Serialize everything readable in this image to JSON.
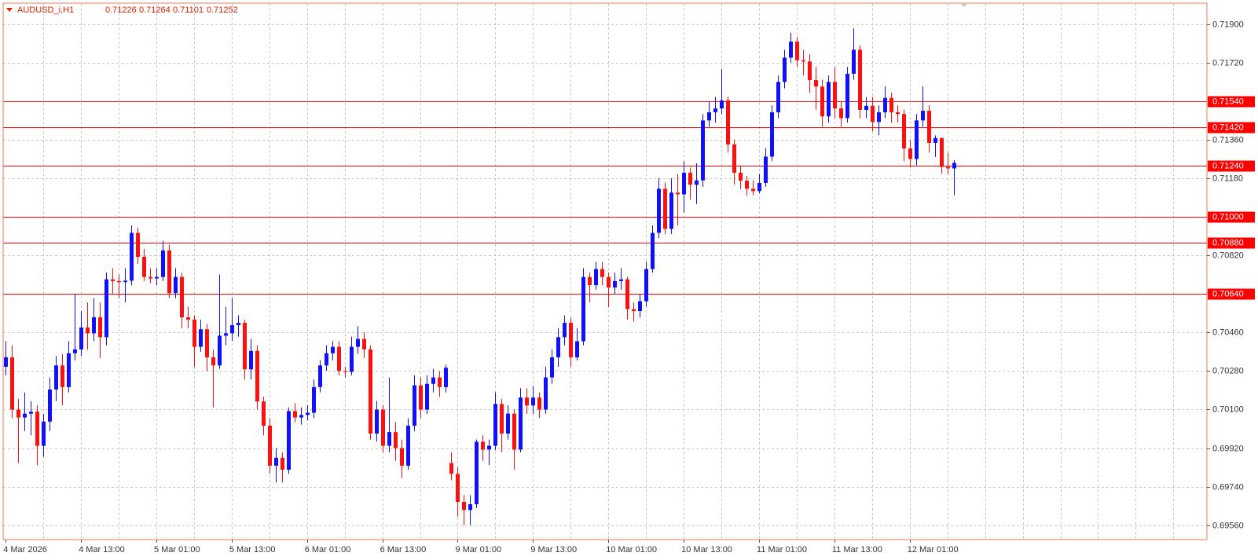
{
  "chart_data": {
    "type": "candlestick",
    "title": "AUDUSD_i,H1",
    "up_color": "#1010ff",
    "down_color": "#ff1010",
    "level_color": "#ff0000",
    "grid": true,
    "categories": [
      "4 Mar 2026",
      null,
      null,
      null,
      null,
      null,
      null,
      null,
      null,
      null,
      null,
      null,
      "4 Mar 13:00",
      null,
      null,
      null,
      null,
      null,
      null,
      null,
      null,
      null,
      null,
      null,
      "5 Mar 01:00",
      null,
      null,
      null,
      null,
      null,
      null,
      null,
      null,
      null,
      null,
      null,
      "5 Mar 13:00",
      null,
      null,
      null,
      null,
      null,
      null,
      null,
      null,
      null,
      null,
      null,
      "6 Mar 01:00",
      null,
      null,
      null,
      null,
      null,
      null,
      null,
      null,
      null,
      null,
      null,
      "6 Mar 13:00",
      null,
      null,
      null,
      null,
      null,
      null,
      null,
      null,
      null,
      null,
      null,
      "9 Mar 01:00",
      null,
      null,
      null,
      null,
      null,
      null,
      null,
      null,
      null,
      null,
      null,
      "9 Mar 13:00",
      null,
      null,
      null,
      null,
      null,
      null,
      null,
      null,
      null,
      null,
      null,
      "10 Mar 01:00",
      null,
      null,
      null,
      null,
      null,
      null,
      null,
      null,
      null,
      null,
      null,
      "10 Mar 13:00",
      null,
      null,
      null,
      null,
      null,
      null,
      null,
      null,
      null,
      null,
      null,
      "11 Mar 01:00",
      null,
      null,
      null,
      null,
      null,
      null,
      null,
      null,
      null,
      null,
      null,
      "11 Mar 13:00",
      null,
      null,
      null,
      null,
      null,
      null,
      null,
      null,
      null,
      null,
      null,
      "12 Mar 01:00",
      null,
      null,
      null,
      null,
      null,
      null,
      null
    ],
    "open": [
      0.703,
      0.70344,
      0.701,
      0.70063,
      0.70081,
      0.7009,
      0.69931,
      0.70044,
      0.70194,
      0.70306,
      0.70205,
      0.70363,
      0.70381,
      0.70483,
      0.70456,
      0.70531,
      0.70438,
      0.70708,
      0.707,
      0.70695,
      0.70702,
      0.70925,
      0.70813,
      0.70719,
      0.70712,
      0.70719,
      0.70843,
      0.70644,
      0.70719,
      0.70531,
      0.7052,
      0.70393,
      0.70475,
      0.70344,
      0.70306,
      0.70445,
      0.70456,
      0.70494,
      0.70505,
      0.70288,
      0.70374,
      0.70138,
      0.70025,
      0.69838,
      0.69875,
      0.69819,
      0.70093,
      0.70063,
      0.70075,
      0.70085,
      0.70205,
      0.70306,
      0.70363,
      0.70393,
      0.7028,
      0.70276,
      0.70393,
      0.7043,
      0.70381,
      0.69988,
      0.701,
      0.69931,
      0.69995,
      0.6992,
      0.69838,
      0.70025,
      0.70213,
      0.701,
      0.7022,
      0.7025,
      0.70205,
      0.6985,
      0.698,
      0.69669,
      0.69631,
      0.69658,
      0.6995,
      0.69913,
      0.69931,
      0.70126,
      0.69988,
      0.70081,
      0.69913,
      0.70156,
      0.70119,
      0.70156,
      0.701,
      0.7025,
      0.70344,
      0.70438,
      0.70505,
      0.70344,
      0.70419,
      0.70719,
      0.70681,
      0.70756,
      0.70719,
      0.7067,
      0.707,
      0.70708,
      0.70569,
      0.7056,
      0.70606,
      0.70756,
      0.70925,
      0.71131,
      0.70944,
      0.71113,
      0.71105,
      0.71206,
      0.7115,
      0.7117,
      0.7145,
      0.71488,
      0.71506,
      0.71544,
      0.71338,
      0.71206,
      0.71169,
      0.71131,
      0.7112,
      0.71158,
      0.71281,
      0.71488,
      0.7163,
      0.71743,
      0.71818,
      0.71731,
      0.71725,
      0.71638,
      0.71608,
      0.71469,
      0.7163,
      0.71506,
      0.71461,
      0.71668,
      0.7178,
      0.71499,
      0.71518,
      0.71443,
      0.71488,
      0.71555,
      0.71488,
      0.7148,
      0.71319,
      0.7127,
      0.7145,
      0.71495,
      0.71345,
      0.71368,
      0.71233,
      0.71226
    ],
    "high": [
      0.7042,
      0.704,
      0.7015,
      0.7018,
      0.7014,
      0.7012,
      0.7008,
      0.7025,
      0.7035,
      0.7036,
      0.7042,
      0.7064,
      0.7056,
      0.706,
      0.7062,
      0.706,
      0.7074,
      0.7076,
      0.7073,
      0.7076,
      0.7096,
      0.7095,
      0.7085,
      0.7076,
      0.7076,
      0.70888,
      0.7087,
      0.7076,
      0.7074,
      0.7058,
      0.7054,
      0.7052,
      0.705,
      0.7038,
      0.7073,
      0.7058,
      0.7062,
      0.7054,
      0.7052,
      0.7043,
      0.704,
      0.7016,
      0.7006,
      0.6992,
      0.699,
      0.7011,
      0.7013,
      0.7011,
      0.7012,
      0.7024,
      0.7033,
      0.704,
      0.7042,
      0.7042,
      0.703,
      0.7044,
      0.7049,
      0.7046,
      0.704,
      0.7014,
      0.7012,
      0.7025,
      0.7004,
      0.6996,
      0.7006,
      0.7026,
      0.7025,
      0.7026,
      0.7029,
      0.7028,
      0.7031,
      0.699,
      0.6983,
      0.697,
      0.697,
      0.6996,
      0.6998,
      0.6996,
      0.7018,
      0.7015,
      0.7012,
      0.701,
      0.702,
      0.702,
      0.7021,
      0.7018,
      0.703,
      0.7038,
      0.7048,
      0.7054,
      0.7053,
      0.7048,
      0.7076,
      0.7074,
      0.7079,
      0.7079,
      0.7074,
      0.7074,
      0.7076,
      0.7072,
      0.706,
      0.7064,
      0.7079,
      0.7096,
      0.7118,
      0.7116,
      0.7118,
      0.712,
      0.7126,
      0.7123,
      0.7125,
      0.7148,
      0.7154,
      0.7156,
      0.7169,
      0.7156,
      0.7136,
      0.7124,
      0.7119,
      0.7117,
      0.712,
      0.7132,
      0.7152,
      0.7166,
      0.7178,
      0.7186,
      0.7184,
      0.7178,
      0.7176,
      0.717,
      0.7164,
      0.7166,
      0.717,
      0.7154,
      0.717,
      0.7188,
      0.718,
      0.7156,
      0.7156,
      0.7152,
      0.7161,
      0.7158,
      0.7152,
      0.715,
      0.7136,
      0.7148,
      0.7161,
      0.7152,
      0.7138,
      0.7137,
      0.713,
      0.71264
    ],
    "low": [
      0.7026,
      0.7006,
      0.6985,
      0.7,
      0.6998,
      0.6984,
      0.6988,
      0.7,
      0.7014,
      0.7012,
      0.7018,
      0.7033,
      0.7035,
      0.7038,
      0.7042,
      0.7034,
      0.704,
      0.7064,
      0.7062,
      0.706,
      0.7068,
      0.7078,
      0.707,
      0.7069,
      0.7068,
      0.707,
      0.7062,
      0.7062,
      0.7048,
      0.7048,
      0.703,
      0.7037,
      0.7028,
      0.7011,
      0.7029,
      0.704,
      0.7042,
      0.7044,
      0.7024,
      0.7024,
      0.701,
      0.6998,
      0.698,
      0.6976,
      0.6976,
      0.698,
      0.7004,
      0.7003,
      0.7005,
      0.7006,
      0.7018,
      0.7028,
      0.7033,
      0.7026,
      0.7025,
      0.7026,
      0.7036,
      0.7034,
      0.6996,
      0.6995,
      0.699,
      0.699,
      0.6986,
      0.6978,
      0.6982,
      0.7,
      0.7006,
      0.7008,
      0.7018,
      0.7016,
      0.7018,
      0.6977,
      0.696,
      0.6956,
      0.6956,
      0.6964,
      0.6986,
      0.6984,
      0.6991,
      0.699,
      0.6996,
      0.6982,
      0.699,
      0.7008,
      0.7008,
      0.7006,
      0.7008,
      0.7022,
      0.703,
      0.704,
      0.703,
      0.7033,
      0.704,
      0.706,
      0.7066,
      0.7068,
      0.7058,
      0.7064,
      0.7066,
      0.7052,
      0.7051,
      0.7053,
      0.7058,
      0.7074,
      0.709,
      0.7092,
      0.7092,
      0.7096,
      0.7102,
      0.7108,
      0.7106,
      0.7114,
      0.7142,
      0.7144,
      0.7148,
      0.713,
      0.7115,
      0.7113,
      0.711,
      0.711,
      0.7111,
      0.7114,
      0.7126,
      0.7146,
      0.716,
      0.7172,
      0.717,
      0.7166,
      0.7158,
      0.715,
      0.7142,
      0.7144,
      0.7146,
      0.7142,
      0.7144,
      0.7164,
      0.7146,
      0.7146,
      0.714,
      0.7138,
      0.7146,
      0.7144,
      0.7144,
      0.7126,
      0.7123,
      0.7124,
      0.7142,
      0.713,
      0.7128,
      0.712,
      0.712,
      0.71101
    ],
    "close": [
      0.70344,
      0.701,
      0.70063,
      0.70081,
      0.7009,
      0.69931,
      0.70044,
      0.70194,
      0.70306,
      0.70205,
      0.70363,
      0.70381,
      0.70483,
      0.70456,
      0.70531,
      0.70438,
      0.70708,
      0.707,
      0.70695,
      0.70702,
      0.70925,
      0.70813,
      0.70719,
      0.70712,
      0.70719,
      0.70843,
      0.70644,
      0.70719,
      0.70531,
      0.7052,
      0.70393,
      0.70475,
      0.70344,
      0.70306,
      0.70445,
      0.70456,
      0.70494,
      0.70505,
      0.70288,
      0.70374,
      0.70138,
      0.70025,
      0.69838,
      0.69875,
      0.69819,
      0.70093,
      0.70063,
      0.70075,
      0.70085,
      0.70205,
      0.70306,
      0.70363,
      0.70393,
      0.7028,
      0.70276,
      0.70393,
      0.7043,
      0.70381,
      0.69988,
      0.701,
      0.69931,
      0.69995,
      0.6992,
      0.69838,
      0.70025,
      0.70213,
      0.701,
      0.7022,
      0.7025,
      0.70205,
      0.70295,
      0.698,
      0.69669,
      0.69631,
      0.69658,
      0.6995,
      0.69913,
      0.69931,
      0.70126,
      0.69988,
      0.70081,
      0.69913,
      0.70156,
      0.70119,
      0.70156,
      0.701,
      0.7025,
      0.70344,
      0.70438,
      0.70505,
      0.70344,
      0.70419,
      0.70719,
      0.70681,
      0.70756,
      0.70719,
      0.7067,
      0.707,
      0.70708,
      0.70569,
      0.7056,
      0.70606,
      0.70756,
      0.70925,
      0.71131,
      0.70944,
      0.71113,
      0.71105,
      0.71206,
      0.7115,
      0.7117,
      0.7145,
      0.71488,
      0.71506,
      0.71544,
      0.71338,
      0.71206,
      0.71169,
      0.71131,
      0.7112,
      0.71158,
      0.71281,
      0.71488,
      0.7163,
      0.71743,
      0.71818,
      0.71731,
      0.71725,
      0.71638,
      0.71608,
      0.71469,
      0.7163,
      0.71506,
      0.71461,
      0.71668,
      0.7178,
      0.71499,
      0.71518,
      0.71443,
      0.71488,
      0.71555,
      0.71488,
      0.7148,
      0.71319,
      0.7127,
      0.7145,
      0.71495,
      0.71345,
      0.71368,
      0.71233,
      0.71226,
      0.71252
    ],
    "ylim": [
      0.69493,
      0.71994
    ],
    "yticks": [
      {
        "value": 0.719,
        "label": "0.71900"
      },
      {
        "value": 0.7172,
        "label": "0.71720"
      },
      {
        "value": 0.7136,
        "label": "0.71360"
      },
      {
        "value": 0.7118,
        "label": "0.71180"
      },
      {
        "value": 0.7082,
        "label": "0.70820"
      },
      {
        "value": 0.7046,
        "label": "0.70460"
      },
      {
        "value": 0.7028,
        "label": "0.70280"
      },
      {
        "value": 0.701,
        "label": "0.70100"
      },
      {
        "value": 0.6992,
        "label": "0.69920"
      },
      {
        "value": 0.6974,
        "label": "0.69740"
      },
      {
        "value": 0.6956,
        "label": "0.69560"
      }
    ],
    "levels": [
      {
        "value": 0.7154,
        "label": "0.71540"
      },
      {
        "value": 0.7142,
        "label": "0.71420"
      },
      {
        "value": 0.7124,
        "label": "0.71240"
      },
      {
        "value": 0.71,
        "label": "0.71000"
      },
      {
        "value": 0.7088,
        "label": "0.70880"
      },
      {
        "value": 0.7064,
        "label": "0.70640"
      }
    ]
  }
}
